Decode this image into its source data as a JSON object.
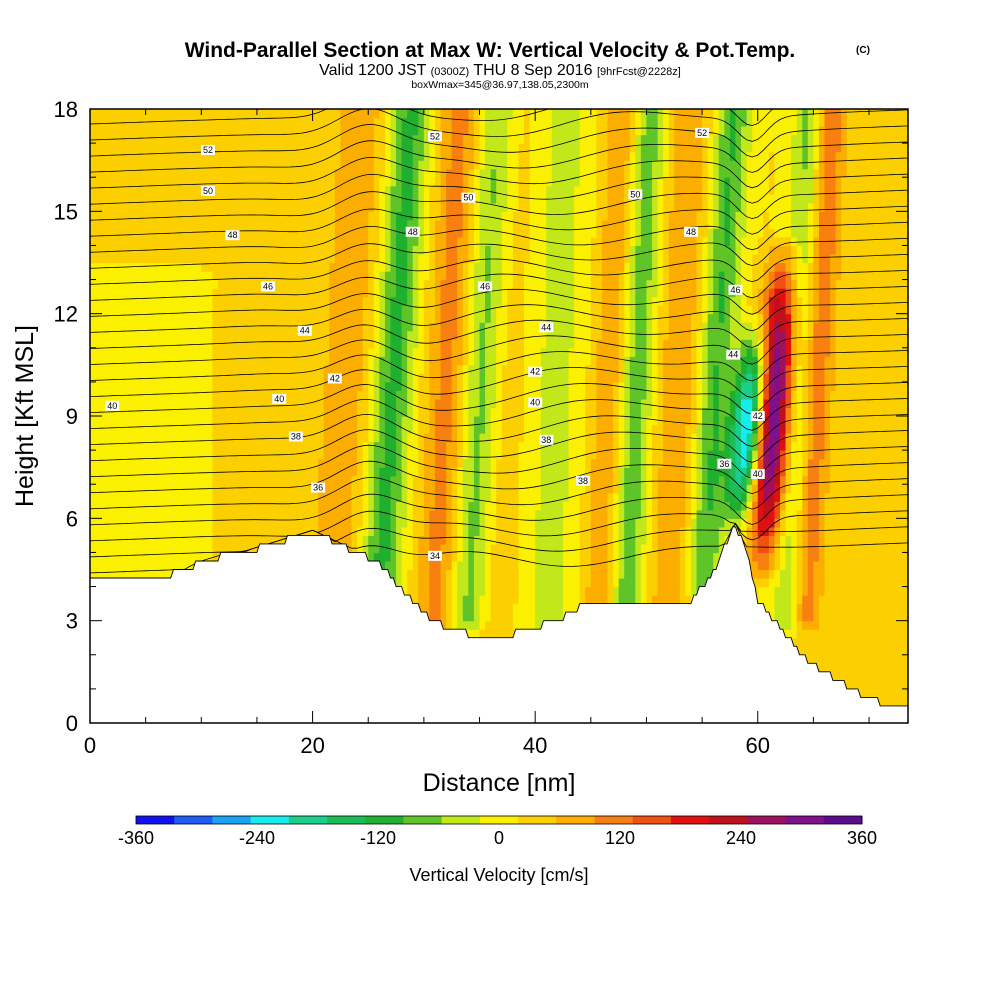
{
  "header": {
    "title_main": "Wind-Parallel Section at Max W: Vertical Velocity & Pot.Temp.",
    "title_tag": "(C)",
    "valid_pre": "Valid 1200 JST",
    "valid_utc": "(0300Z)",
    "valid_post": "THU 8 Sep 2016",
    "forecast_tag": "[9hrFcst@2228z]",
    "box_line": "boxWmax=345@36.97,138.05,2300m"
  },
  "chart_data": {
    "type": "heatmap",
    "title": "Wind-Parallel Section at Max W: Vertical Velocity & Pot.Temp.",
    "xlabel": "Distance [nm]",
    "ylabel": "Height [Kft MSL]",
    "xlim": [
      0,
      73.5
    ],
    "ylim": [
      0,
      18
    ],
    "x_ticks": [
      "0",
      "20",
      "40",
      "60"
    ],
    "x_tick_values": [
      0,
      20,
      40,
      60
    ],
    "y_ticks": [
      "0",
      "3",
      "6",
      "9",
      "12",
      "15",
      "18"
    ],
    "y_tick_values": [
      0,
      3,
      6,
      9,
      12,
      15,
      18
    ],
    "colorbar": {
      "label": "Vertical Velocity [cm/s]",
      "tick_labels": [
        "-360",
        "-240",
        "-120",
        "0",
        "120",
        "240",
        "360"
      ],
      "tick_values": [
        -360,
        -240,
        -120,
        0,
        120,
        240,
        360
      ],
      "colors": [
        "#1010f0",
        "#1e5cf5",
        "#17a4f5",
        "#16ecec",
        "#19cf8c",
        "#1cbd56",
        "#20b030",
        "#5ec428",
        "#c2e81c",
        "#faf000",
        "#fcd000",
        "#fcae00",
        "#f88010",
        "#f05010",
        "#e01010",
        "#c0101c",
        "#a01060",
        "#80108c",
        "#5c0c8c"
      ]
    },
    "terrain": [
      [
        0,
        4.2
      ],
      [
        2,
        4.2
      ],
      [
        4,
        4.2
      ],
      [
        6,
        4.3
      ],
      [
        8,
        4.4
      ],
      [
        10,
        4.7
      ],
      [
        12,
        4.9
      ],
      [
        14,
        5.0
      ],
      [
        16,
        5.2
      ],
      [
        18,
        5.4
      ],
      [
        20,
        5.6
      ],
      [
        22,
        5.3
      ],
      [
        24,
        5.0
      ],
      [
        26,
        4.7
      ],
      [
        28,
        3.9
      ],
      [
        30,
        3.2
      ],
      [
        32,
        2.8
      ],
      [
        34,
        2.6
      ],
      [
        36,
        2.6
      ],
      [
        38,
        2.6
      ],
      [
        40,
        2.8
      ],
      [
        42,
        3.0
      ],
      [
        44,
        3.4
      ],
      [
        46,
        3.6
      ],
      [
        48,
        3.6
      ],
      [
        50,
        3.5
      ],
      [
        52,
        3.4
      ],
      [
        54,
        3.6
      ],
      [
        56,
        4.4
      ],
      [
        57,
        5.2
      ],
      [
        58,
        5.8
      ],
      [
        59,
        5.0
      ],
      [
        60,
        3.6
      ],
      [
        61,
        3.2
      ],
      [
        62,
        2.8
      ],
      [
        63,
        2.4
      ],
      [
        64,
        2.0
      ],
      [
        65,
        1.7
      ],
      [
        66,
        1.5
      ],
      [
        67,
        1.3
      ],
      [
        68,
        1.1
      ],
      [
        70,
        0.7
      ],
      [
        72,
        0.5
      ],
      [
        73.5,
        0.4
      ]
    ],
    "vertical_velocity_features": [
      {
        "x": 22,
        "y_range": [
          4.7,
          18
        ],
        "tilt": 0.18,
        "half_width": 2.6,
        "value": 60
      },
      {
        "x": 26,
        "y_range": [
          4.0,
          18
        ],
        "tilt": 0.2,
        "half_width": 1.8,
        "value": -130
      },
      {
        "x": 31,
        "y_range": [
          3.0,
          18
        ],
        "tilt": 0.15,
        "half_width": 1.8,
        "value": 90
      },
      {
        "x": 34,
        "y_range": [
          3.0,
          18
        ],
        "tilt": 0.18,
        "half_width": 1.8,
        "value": -110
      },
      {
        "x": 36,
        "y_range": [
          2.6,
          18
        ],
        "tilt": 0.12,
        "half_width": 2.6,
        "value": 40
      },
      {
        "x": 41,
        "y_range": [
          2.8,
          18
        ],
        "tilt": 0.1,
        "half_width": 3.0,
        "value": -50
      },
      {
        "x": 46,
        "y_range": [
          3.6,
          18
        ],
        "tilt": 0.15,
        "half_width": 1.8,
        "value": 90
      },
      {
        "x": 48,
        "y_range": [
          3.6,
          18
        ],
        "tilt": 0.15,
        "half_width": 1.8,
        "value": -120
      },
      {
        "x": 52,
        "y_range": [
          3.4,
          18
        ],
        "tilt": 0.12,
        "half_width": 2.2,
        "value": 70
      },
      {
        "x": 55,
        "y_range": [
          4.0,
          18
        ],
        "tilt": 0.2,
        "half_width": 1.6,
        "value": -120
      },
      {
        "x": 58.3,
        "y_range": [
          5.8,
          11.6
        ],
        "tilt": 0.3,
        "half_width": 1.5,
        "value": -300
      },
      {
        "x": 60.4,
        "y_range": [
          4.6,
          13.8
        ],
        "tilt": 0.22,
        "half_width": 1.6,
        "value": 345
      },
      {
        "x": 62.8,
        "y_range": [
          3.0,
          18
        ],
        "tilt": 0.12,
        "half_width": 1.4,
        "value": -90
      },
      {
        "x": 64.2,
        "y_range": [
          3.0,
          18
        ],
        "tilt": 0.16,
        "half_width": 1.4,
        "value": 110
      },
      {
        "x": 3.5,
        "y_range": [
          4.2,
          13.0
        ],
        "tilt": 0.05,
        "half_width": 4.0,
        "value": -30
      }
    ],
    "theta_contour_labels": [
      {
        "text": "52",
        "x": 10.6,
        "y": 16.8
      },
      {
        "text": "50",
        "x": 10.6,
        "y": 15.6
      },
      {
        "text": "48",
        "x": 12.8,
        "y": 14.3
      },
      {
        "text": "46",
        "x": 16.0,
        "y": 12.8
      },
      {
        "text": "44",
        "x": 19.3,
        "y": 11.5
      },
      {
        "text": "42",
        "x": 22.0,
        "y": 10.1
      },
      {
        "text": "40",
        "x": 17.0,
        "y": 9.5
      },
      {
        "text": "38",
        "x": 18.5,
        "y": 8.4
      },
      {
        "text": "36",
        "x": 20.5,
        "y": 6.9
      },
      {
        "text": "40",
        "x": 2.0,
        "y": 9.3
      },
      {
        "text": "52",
        "x": 31.0,
        "y": 17.2
      },
      {
        "text": "50",
        "x": 34.0,
        "y": 15.4
      },
      {
        "text": "48",
        "x": 29.0,
        "y": 14.4
      },
      {
        "text": "46",
        "x": 35.5,
        "y": 12.8
      },
      {
        "text": "44",
        "x": 41.0,
        "y": 11.6
      },
      {
        "text": "42",
        "x": 40.0,
        "y": 10.3
      },
      {
        "text": "40",
        "x": 40.0,
        "y": 9.4
      },
      {
        "text": "38",
        "x": 41.0,
        "y": 8.3
      },
      {
        "text": "38",
        "x": 44.3,
        "y": 7.1
      },
      {
        "text": "34",
        "x": 31.0,
        "y": 4.9
      },
      {
        "text": "52",
        "x": 55.0,
        "y": 17.3
      },
      {
        "text": "50",
        "x": 49.0,
        "y": 15.5
      },
      {
        "text": "48",
        "x": 54.0,
        "y": 14.4
      },
      {
        "text": "46",
        "x": 58.0,
        "y": 12.7
      },
      {
        "text": "44",
        "x": 57.8,
        "y": 10.8
      },
      {
        "text": "42",
        "x": 60.0,
        "y": 9.0
      },
      {
        "text": "40",
        "x": 60.0,
        "y": 7.3
      },
      {
        "text": "36",
        "x": 57.0,
        "y": 7.6
      }
    ]
  }
}
